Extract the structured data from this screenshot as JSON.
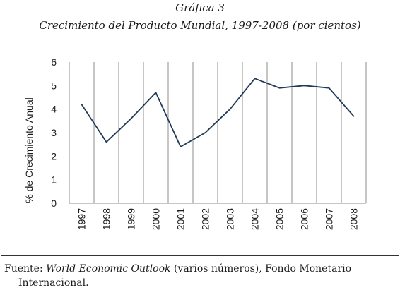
{
  "figure_label": "Gráfica 3",
  "figure_title": "Crecimiento del Producto Mundial, 1997-2008 (por cientos)",
  "source": {
    "prefix": "Fuente:",
    "publication": "World Economic Outlook",
    "rest": "(varios números), Fondo Monetario",
    "line2": "Internacional."
  },
  "chart_data": {
    "type": "line",
    "title": "",
    "xlabel": "",
    "ylabel": "% de Crecimiento Anual",
    "categories": [
      "1997",
      "1998",
      "1999",
      "2000",
      "2001",
      "2002",
      "2003",
      "2004",
      "2005",
      "2006",
      "2007",
      "2008"
    ],
    "series": [
      {
        "values": [
          4.2,
          2.6,
          3.6,
          4.7,
          2.4,
          3.0,
          4.0,
          5.3,
          4.9,
          5.0,
          4.9,
          3.7
        ]
      }
    ],
    "ylim": [
      0,
      6
    ],
    "yticks": [
      "0",
      "1",
      "2",
      "3",
      "4",
      "5",
      "6"
    ],
    "grid": "vertical",
    "colors": {
      "line": "#1f3a57",
      "grid": "#8c8c8c",
      "text": "#1a1a1a"
    }
  }
}
